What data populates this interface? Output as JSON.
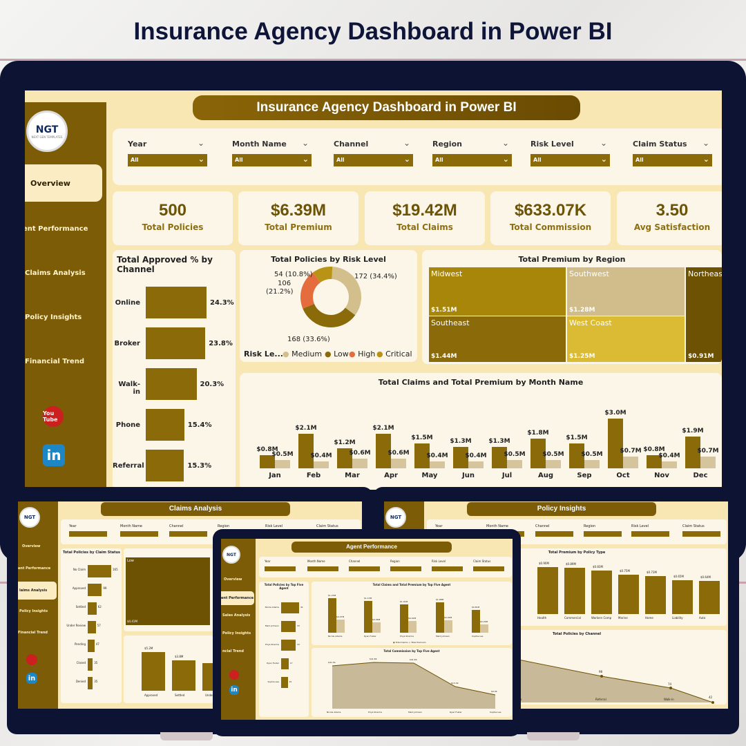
{
  "page_title": "Insurance Agency Dashboard in Power BI",
  "main": {
    "banner": "Insurance Agency Dashboard in Power BI",
    "logo": {
      "text": "NGT",
      "sub": "NEXT GEN TEMPLATES"
    },
    "nav": [
      "Overview",
      "ent Performance",
      "Claims Analysis",
      "Policy Insights",
      "Financial Trend"
    ],
    "social": {
      "youtube": "You Tube",
      "linkedin": "in"
    },
    "filters": [
      {
        "label": "Year",
        "value": "All"
      },
      {
        "label": "Month Name",
        "value": "All"
      },
      {
        "label": "Channel",
        "value": "All"
      },
      {
        "label": "Region",
        "value": "All"
      },
      {
        "label": "Risk Level",
        "value": "All"
      },
      {
        "label": "Claim Status",
        "value": "All"
      }
    ],
    "kpis": [
      {
        "value": "500",
        "label": "Total Policies"
      },
      {
        "value": "$6.39M",
        "label": "Total Premium"
      },
      {
        "value": "$19.42M",
        "label": "Total Claims"
      },
      {
        "value": "$633.07K",
        "label": "Total Commission"
      },
      {
        "value": "3.50",
        "label": "Avg Satisfaction"
      }
    ],
    "channel_chart": {
      "title": "Total Approved % by Channel",
      "rows": [
        {
          "cat": "Online",
          "pct": 24.3,
          "label": "24.3%"
        },
        {
          "cat": "Broker",
          "pct": 23.8,
          "label": "23.8%"
        },
        {
          "cat": "Walk-in",
          "pct": 20.3,
          "label": "20.3%"
        },
        {
          "cat": "Phone",
          "pct": 15.4,
          "label": "15.4%"
        },
        {
          "cat": "Referral",
          "pct": 15.3,
          "label": "15.3%"
        }
      ]
    },
    "risk_chart": {
      "title": "Total Policies by Risk Level",
      "legend_title": "Risk Le...",
      "legend": [
        {
          "name": "Medium",
          "color": "#d2bf8c"
        },
        {
          "name": "Low",
          "color": "#8b6a09"
        },
        {
          "name": "High",
          "color": "#e46c3d"
        },
        {
          "name": "Critical",
          "color": "#b89315"
        }
      ],
      "labels": {
        "critical": "54 (10.8%)",
        "high": "106",
        "high_pct": "(21.2%)",
        "medium": "172 (34.4%)",
        "low": "168 (33.6%)"
      }
    },
    "region_chart": {
      "title": "Total Premium by Region",
      "tiles": [
        {
          "name": "Midwest",
          "value": "$1.51M",
          "color": "#a8860a"
        },
        {
          "name": "Southwest",
          "value": "$1.28M",
          "color": "#d1bd8b"
        },
        {
          "name": "Northeas",
          "value": "$0.91M",
          "color": "#6e5203"
        },
        {
          "name": "Southeast",
          "value": "$1.44M",
          "color": "#8b6a09"
        },
        {
          "name": "West Coast",
          "value": "$1.25M",
          "color": "#dcbb34"
        }
      ]
    },
    "month_chart": {
      "title": "Total Claims and Total Premium by Month Name"
    }
  },
  "chart_data": {
    "type": "bar",
    "title": "Total Claims and Total Premium by Month Name",
    "categories": [
      "Jan",
      "Feb",
      "Mar",
      "Apr",
      "May",
      "Jun",
      "Jul",
      "Aug",
      "Sep",
      "Oct",
      "Nov",
      "Dec"
    ],
    "series": [
      {
        "name": "Total Claims",
        "values": [
          0.8,
          2.1,
          1.2,
          2.1,
          1.5,
          1.3,
          1.3,
          1.8,
          1.5,
          3.0,
          0.8,
          1.9
        ],
        "labels": [
          "$0.8M",
          "$2.1M",
          "$1.2M",
          "$2.1M",
          "$1.5M",
          "$1.3M",
          "$1.3M",
          "$1.8M",
          "$1.5M",
          "$3.0M",
          "$0.8M",
          "$1.9M"
        ],
        "color": "#8b6a09"
      },
      {
        "name": "Total Premium",
        "values": [
          0.5,
          0.4,
          0.6,
          0.6,
          0.4,
          0.4,
          0.5,
          0.5,
          0.5,
          0.7,
          0.4,
          0.7
        ],
        "labels": [
          "$0.5M",
          "$0.4M",
          "$0.6M",
          "$0.6M",
          "$0.4M",
          "$0.4M",
          "$0.5M",
          "$0.5M",
          "$0.5M",
          "$0.7M",
          "$0.4M",
          "$0.7M"
        ],
        "color": "#d6c59c"
      }
    ]
  },
  "claims_screen": {
    "banner": "Claims Analysis",
    "nav": [
      "Overview",
      "ent Performance",
      "laims Analysis",
      "Policy Insights",
      "Financial Trend"
    ],
    "chart_title": "Total Policies by Claim Status",
    "rows": [
      {
        "cat": "No Claim",
        "val": "165",
        "w": 165
      },
      {
        "cat": "Approved",
        "val": "99",
        "w": 99
      },
      {
        "cat": "Settled",
        "val": "62",
        "w": 62
      },
      {
        "cat": "Under Review",
        "val": "57",
        "w": 57
      },
      {
        "cat": "Pending",
        "val": "47",
        "w": 47
      },
      {
        "cat": "Closed",
        "val": "35",
        "w": 35
      },
      {
        "cat": "Denied",
        "val": "35",
        "w": 35
      }
    ],
    "tile_name": "Low",
    "tile_value": "$4.41M",
    "bars": [
      {
        "cat": "Approved",
        "val": "$5.2M"
      },
      {
        "cat": "Settled",
        "val": "$3.8M"
      },
      {
        "cat": "Under",
        "val": ""
      }
    ]
  },
  "policy_screen": {
    "banner": "Policy Insights",
    "chart1_title": "Total Premium by Policy Type",
    "types": [
      {
        "cat": "Health",
        "val": "$0.90M"
      },
      {
        "cat": "Commercial",
        "val": "$0.89M"
      },
      {
        "cat": "Workers Comp",
        "val": "$0.83M"
      },
      {
        "cat": "Marine",
        "val": "$0.75M"
      },
      {
        "cat": "Home",
        "val": "$0.73M"
      },
      {
        "cat": "Liability",
        "val": "$0.65M"
      },
      {
        "cat": "Auto",
        "val": "$0.64M"
      }
    ],
    "chart2_title": "Total Policies by Channel",
    "channels": [
      {
        "cat": "Phone",
        "val": "117"
      },
      {
        "cat": "Referral",
        "val": "98"
      },
      {
        "cat": "Walk-in",
        "val": "74"
      },
      {
        "cat": "Broker",
        "val": "42"
      }
    ]
  },
  "agent_screen": {
    "banner": "Agent Performance",
    "nav": [
      "Overview",
      "ent Performance",
      "Sales Analysis",
      "Policy Insights",
      "ncial Trend"
    ],
    "chart1_title": "Total Policies by Top Five Agent",
    "agents": [
      {
        "name": "Nicole Adams",
        "val": "41"
      },
      {
        "name": "Mark Johnson",
        "val": "33"
      },
      {
        "name": "Priya Sharma",
        "val": "33"
      },
      {
        "name": "Ryan Foster",
        "val": "17"
      },
      {
        "name": "Sophia Lee",
        "val": "15"
      }
    ],
    "chart2_title": "Total Claims and Total Premium by Top Five Agent",
    "claims": [
      {
        "name": "Nicole Adams",
        "c": "$1.23M",
        "p": "$0.47M"
      },
      {
        "name": "Ryan Foster",
        "c": "$1.13M",
        "p": "$0.36M"
      },
      {
        "name": "Priya Sharma",
        "c": "$1.01M",
        "p": "$0.42M"
      },
      {
        "name": "Mark Johnson",
        "c": "$1.08M",
        "p": "$0.44M"
      },
      {
        "name": "Sophia Lee",
        "c": "$0.81M",
        "p": "$0.29M"
      }
    ],
    "legend": [
      "Total Claims",
      "Total Premium"
    ],
    "chart3_title": "Total Commission by Top Five Agent",
    "commission": [
      {
        "name": "Nicole Adams",
        "val": "$41.5K"
      },
      {
        "name": "Priya Sharma",
        "val": "$41.8K"
      },
      {
        "name": "Mark Johnson",
        "val": "$41.6K"
      },
      {
        "name": "Ryan Foster",
        "val": "$15.3K"
      },
      {
        "name": "Sophia Lee",
        "val": "$9.3K"
      }
    ]
  }
}
